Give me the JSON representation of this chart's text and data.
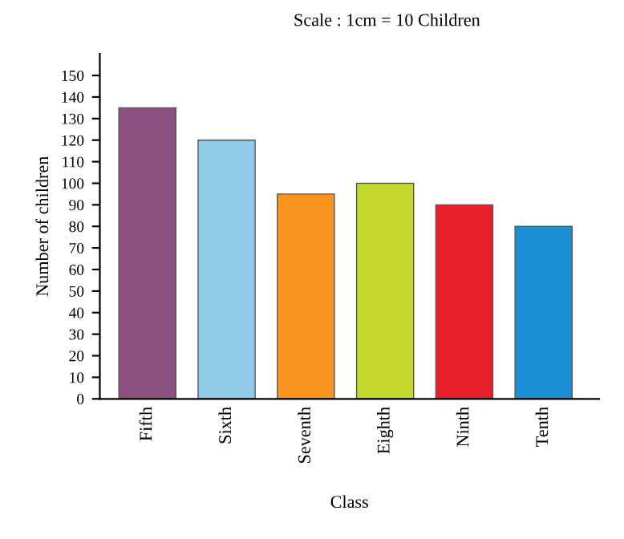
{
  "chart_data": {
    "type": "bar",
    "categories": [
      "Fifth",
      "Sixth",
      "Seventh",
      "Eighth",
      "Ninth",
      "Tenth"
    ],
    "values": [
      135,
      120,
      95,
      100,
      90,
      80
    ],
    "colors": [
      "#8b4f80",
      "#92cbe8",
      "#f7931e",
      "#c5d82e",
      "#e8202a",
      "#1b8fd6"
    ],
    "xlabel": "Class",
    "ylabel": "Number of children",
    "annotations": [
      "Scale : 1cm = 10 Children"
    ],
    "ylim": [
      0,
      160
    ],
    "yticks": [
      0,
      10,
      20,
      30,
      40,
      50,
      60,
      70,
      80,
      90,
      100,
      110,
      120,
      130,
      140,
      150
    ],
    "grid": false
  }
}
